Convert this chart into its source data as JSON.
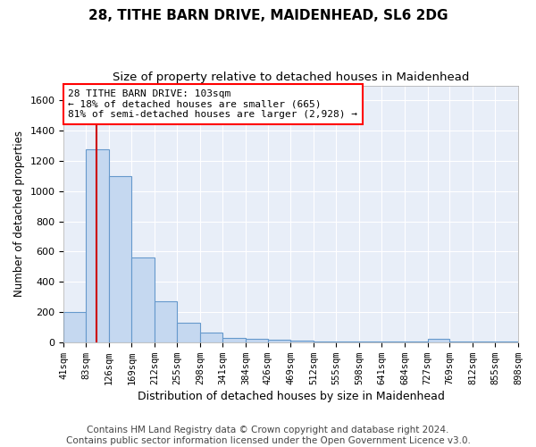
{
  "title": "28, TITHE BARN DRIVE, MAIDENHEAD, SL6 2DG",
  "subtitle": "Size of property relative to detached houses in Maidenhead",
  "xlabel": "Distribution of detached houses by size in Maidenhead",
  "ylabel": "Number of detached properties",
  "bin_edges": [
    41,
    83,
    126,
    169,
    212,
    255,
    298,
    341,
    384,
    426,
    469,
    512,
    555,
    598,
    641,
    684,
    727,
    769,
    812,
    855,
    898
  ],
  "bar_heights": [
    200,
    1280,
    1100,
    560,
    270,
    130,
    65,
    30,
    20,
    15,
    8,
    5,
    5,
    5,
    5,
    5,
    20,
    5,
    5,
    5
  ],
  "bar_color": "#c5d8f0",
  "bar_edge_color": "#6699cc",
  "bar_edge_width": 0.8,
  "red_line_x": 103,
  "red_line_color": "#cc0000",
  "annotation_box_text": "28 TITHE BARN DRIVE: 103sqm\n← 18% of detached houses are smaller (665)\n81% of semi-detached houses are larger (2,928) →",
  "ylim": [
    0,
    1700
  ],
  "yticks": [
    0,
    200,
    400,
    600,
    800,
    1000,
    1200,
    1400,
    1600
  ],
  "background_color": "#ffffff",
  "plot_bg_color": "#e8eef8",
  "grid_color": "#ffffff",
  "title_fontsize": 11,
  "subtitle_fontsize": 9.5,
  "footer_text": "Contains HM Land Registry data © Crown copyright and database right 2024.\nContains public sector information licensed under the Open Government Licence v3.0.",
  "footer_fontsize": 7.5
}
